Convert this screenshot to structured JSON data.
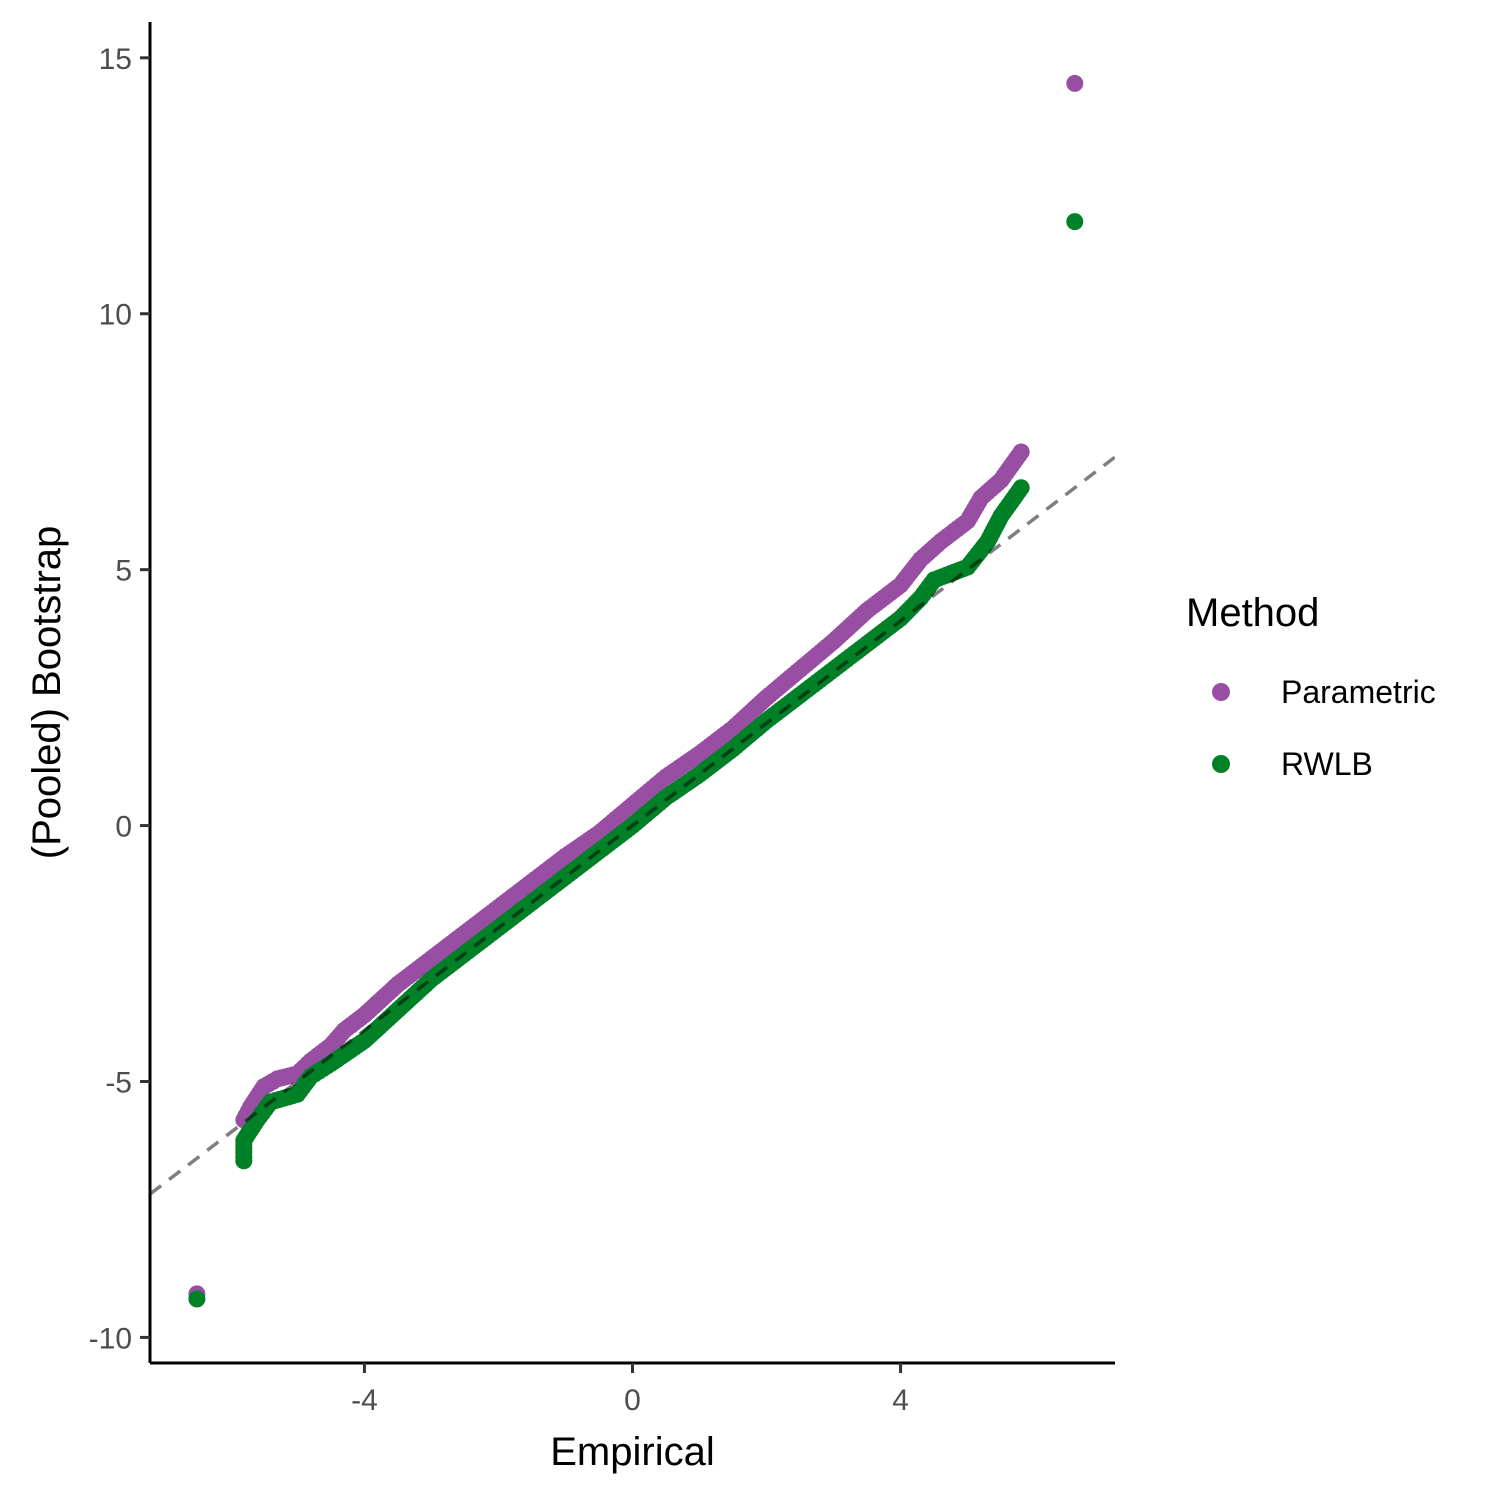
{
  "chart_data": {
    "type": "scatter",
    "xlabel": "Empirical",
    "ylabel": "(Pooled) Bootstrap",
    "xlim": [
      -7.2,
      7.2
    ],
    "ylim": [
      -10.5,
      15.7
    ],
    "x_ticks": [
      -4,
      0,
      4
    ],
    "x_tick_labels": [
      "-4",
      "0",
      "4"
    ],
    "y_ticks": [
      -10,
      -5,
      0,
      5,
      10,
      15
    ],
    "y_tick_labels": [
      "-10",
      "-5",
      "0",
      "5",
      "10",
      "15"
    ],
    "grid": false,
    "reference_line": {
      "slope": 1,
      "intercept": 0,
      "style": "dashed"
    },
    "legend": {
      "title": "Method",
      "position": "right"
    },
    "series": [
      {
        "name": "Parametric",
        "color": "#984ea3",
        "points": [
          [
            -6.5,
            -9.15
          ],
          [
            -5.8,
            -5.75
          ],
          [
            -5.7,
            -5.5
          ],
          [
            -5.6,
            -5.3
          ],
          [
            -5.5,
            -5.1
          ],
          [
            -5.3,
            -4.95
          ],
          [
            -5.0,
            -4.85
          ],
          [
            -4.8,
            -4.6
          ],
          [
            -4.5,
            -4.3
          ],
          [
            -4.3,
            -4.0
          ],
          [
            -4.0,
            -3.7
          ],
          [
            -3.5,
            -3.1
          ],
          [
            -3.0,
            -2.6
          ],
          [
            -2.5,
            -2.1
          ],
          [
            -2.0,
            -1.6
          ],
          [
            -1.5,
            -1.1
          ],
          [
            -1.0,
            -0.6
          ],
          [
            -0.5,
            -0.15
          ],
          [
            0.0,
            0.4
          ],
          [
            0.5,
            0.95
          ],
          [
            1.0,
            1.4
          ],
          [
            1.5,
            1.9
          ],
          [
            2.0,
            2.5
          ],
          [
            2.5,
            3.05
          ],
          [
            3.0,
            3.6
          ],
          [
            3.5,
            4.2
          ],
          [
            4.0,
            4.7
          ],
          [
            4.3,
            5.2
          ],
          [
            4.6,
            5.55
          ],
          [
            5.0,
            5.95
          ],
          [
            5.2,
            6.4
          ],
          [
            5.5,
            6.75
          ],
          [
            5.8,
            7.3
          ],
          [
            6.6,
            14.5
          ]
        ]
      },
      {
        "name": "RWLB",
        "color": "#008027",
        "points": [
          [
            -6.5,
            -9.25
          ],
          [
            -5.8,
            -6.55
          ],
          [
            -5.8,
            -6.15
          ],
          [
            -5.6,
            -5.75
          ],
          [
            -5.4,
            -5.4
          ],
          [
            -5.0,
            -5.25
          ],
          [
            -4.8,
            -4.9
          ],
          [
            -4.5,
            -4.65
          ],
          [
            -4.0,
            -4.2
          ],
          [
            -3.5,
            -3.6
          ],
          [
            -3.0,
            -3.0
          ],
          [
            -2.5,
            -2.5
          ],
          [
            -2.0,
            -2.0
          ],
          [
            -1.5,
            -1.5
          ],
          [
            -1.0,
            -1.0
          ],
          [
            -0.5,
            -0.5
          ],
          [
            0.0,
            0.0
          ],
          [
            0.5,
            0.55
          ],
          [
            1.0,
            1.0
          ],
          [
            1.5,
            1.5
          ],
          [
            2.0,
            2.05
          ],
          [
            2.5,
            2.55
          ],
          [
            3.0,
            3.05
          ],
          [
            3.5,
            3.55
          ],
          [
            4.0,
            4.05
          ],
          [
            4.3,
            4.45
          ],
          [
            4.5,
            4.8
          ],
          [
            5.0,
            5.05
          ],
          [
            5.3,
            5.55
          ],
          [
            5.5,
            6.05
          ],
          [
            5.8,
            6.6
          ],
          [
            6.6,
            11.8
          ]
        ]
      }
    ]
  }
}
